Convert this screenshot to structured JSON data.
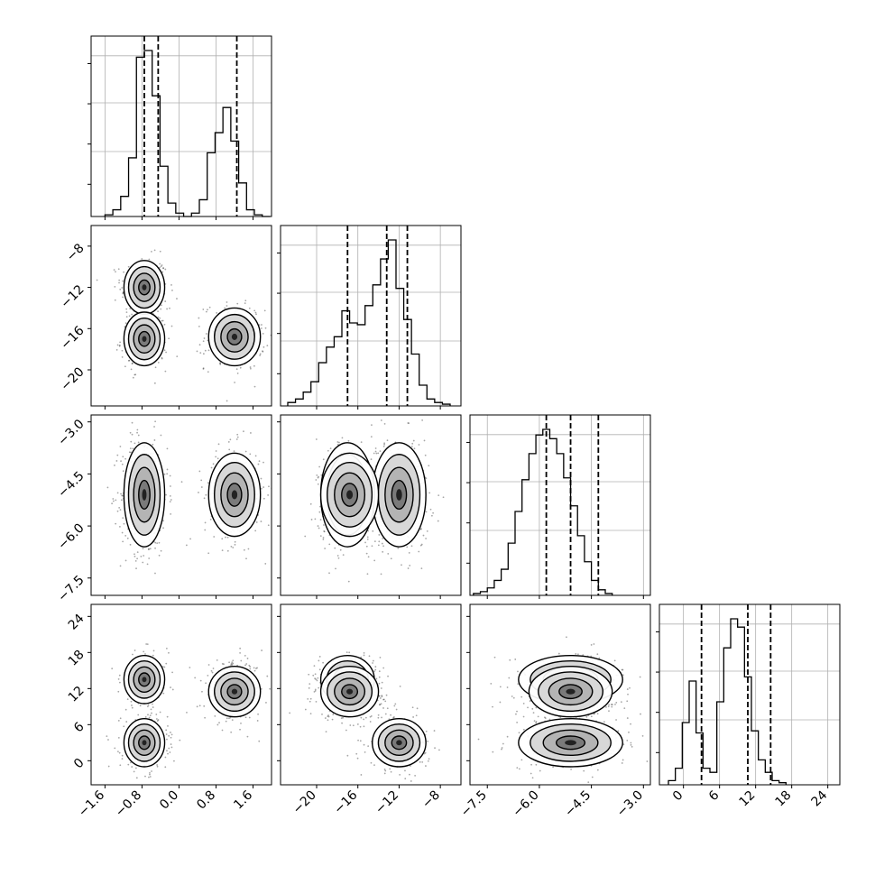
{
  "chart_data": {
    "type": "corner",
    "n_params": 4,
    "params": [
      {
        "ticks": [
          -1.6,
          -0.8,
          0.0,
          0.8,
          1.6
        ],
        "tick_labels": [
          "−1.6",
          "−0.8",
          "0.0",
          "0.8",
          "1.6"
        ],
        "range": [
          -1.9,
          2.0
        ],
        "quantiles": [
          -0.75,
          -0.45,
          1.25
        ]
      },
      {
        "ticks": [
          -20,
          -16,
          -12,
          -8
        ],
        "tick_labels": [
          "−20",
          "−16",
          "−12",
          "−8"
        ],
        "range": [
          -23.5,
          -6.0
        ],
        "quantiles": [
          -17.0,
          -13.2,
          -11.2
        ]
      },
      {
        "ticks": [
          -7.5,
          -6.0,
          -4.5,
          -3.0
        ],
        "tick_labels": [
          "−7.5",
          "−6.0",
          "−4.5",
          "−3.0"
        ],
        "range": [
          -8.0,
          -2.8
        ],
        "quantiles": [
          -5.8,
          -5.1,
          -4.3
        ]
      },
      {
        "ticks": [
          0,
          6,
          12,
          18,
          24
        ],
        "tick_labels": [
          "0",
          "6",
          "12",
          "18",
          "24"
        ],
        "range": [
          -4.0,
          26.0
        ],
        "quantiles": [
          3.0,
          10.7,
          14.5
        ]
      }
    ],
    "y_tick_labels": {
      "1": [
        "−8",
        "−12",
        "−16",
        "−20"
      ],
      "2": [
        "−3.0",
        "−4.5",
        "−6.0",
        "−7.5"
      ],
      "3": [
        "24",
        "18",
        "12",
        "6",
        "0"
      ]
    },
    "histograms": [
      {
        "edges_from": -1.6,
        "bin": 0.17,
        "counts": [
          1,
          4,
          12,
          35,
          95,
          99,
          72,
          30,
          8,
          2,
          0,
          2,
          10,
          38,
          50,
          65,
          45,
          20,
          4,
          1,
          0
        ]
      },
      {
        "edges_from": -22.8,
        "bin": 0.75,
        "counts": [
          2,
          4,
          8,
          14,
          25,
          34,
          40,
          55,
          48,
          47,
          58,
          70,
          85,
          96,
          68,
          50,
          30,
          12,
          4,
          2,
          1
        ]
      },
      {
        "edges_from": -7.9,
        "bin": 0.2,
        "counts": [
          1,
          2,
          4,
          8,
          14,
          28,
          45,
          62,
          76,
          86,
          89,
          84,
          76,
          63,
          48,
          32,
          18,
          8,
          3,
          1
        ]
      },
      {
        "edges_from": -2.5,
        "bin": 1.15,
        "counts": [
          2,
          8,
          30,
          50,
          25,
          8,
          6,
          40,
          66,
          80,
          76,
          52,
          26,
          12,
          6,
          2,
          1
        ]
      }
    ],
    "clusters": [
      {
        "center": [
          -0.75,
          -12.0,
          -5.1,
          3.0
        ],
        "spread": [
          0.22,
          1.3,
          0.75,
          2.0
        ],
        "weight": 0.33
      },
      {
        "center": [
          -0.75,
          -17.0,
          -5.1,
          13.5
        ],
        "spread": [
          0.22,
          1.3,
          0.75,
          2.0
        ],
        "weight": 0.22
      },
      {
        "center": [
          1.2,
          -16.8,
          -5.1,
          11.5
        ],
        "spread": [
          0.28,
          1.4,
          0.6,
          2.1
        ],
        "weight": 0.3
      }
    ],
    "grid": true,
    "quantile_style": "dashed"
  }
}
